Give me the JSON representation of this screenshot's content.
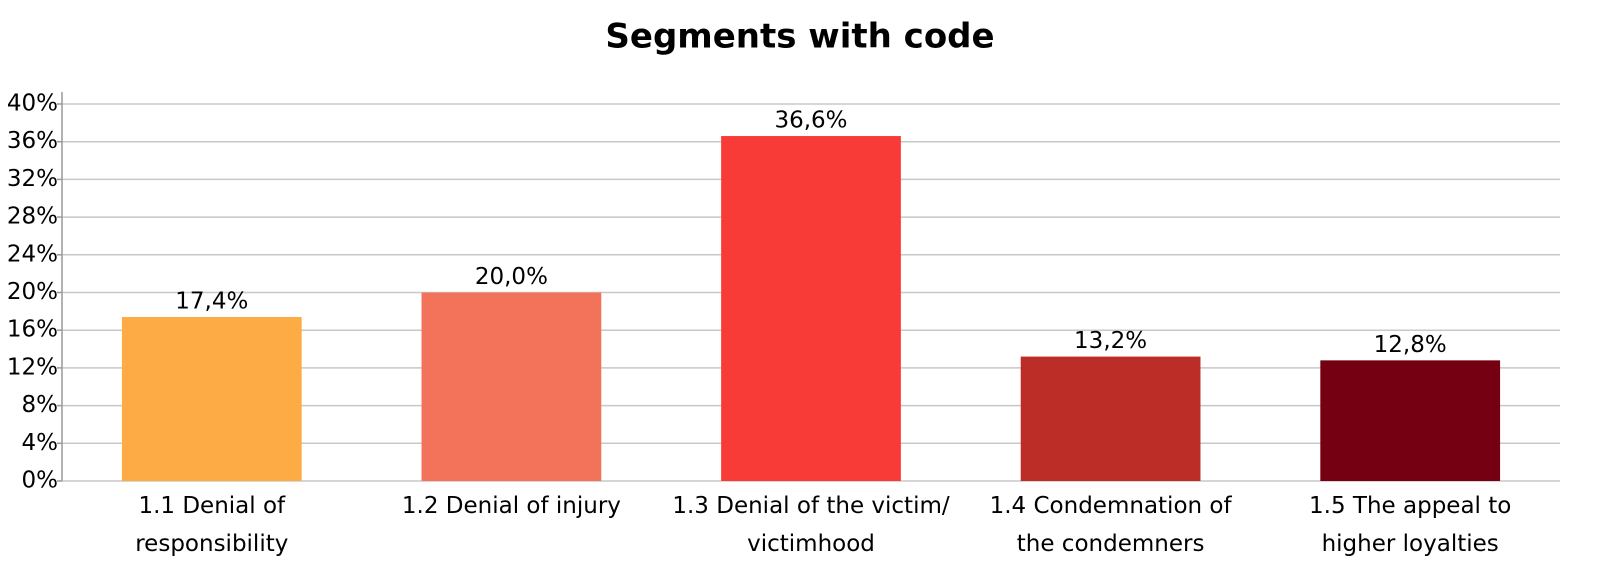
{
  "chart_data": {
    "type": "bar",
    "title": "Segments with code",
    "categories": [
      "1.1 Denial of\nresponsibility",
      "1.2 Denial of injury",
      "1.3 Denial of the victim/\nvictimhood",
      "1.4 Condemnation of\nthe condemners",
      "1.5 The appeal to\nhigher loyalties"
    ],
    "values": [
      17.4,
      20.0,
      36.6,
      13.2,
      12.8
    ],
    "value_labels": [
      "17,4%",
      "20,0%",
      "36,6%",
      "13,2%",
      "12,8%"
    ],
    "colors": [
      "#fdab45",
      "#f3735a",
      "#f93b37",
      "#bd2d28",
      "#750011"
    ],
    "ylim": [
      0,
      40
    ],
    "yticks": [
      {
        "value": 0,
        "label": "0%"
      },
      {
        "value": 4,
        "label": "4%"
      },
      {
        "value": 8,
        "label": "8%"
      },
      {
        "value": 12,
        "label": "12%"
      },
      {
        "value": 16,
        "label": "16%"
      },
      {
        "value": 20,
        "label": "20%"
      },
      {
        "value": 24,
        "label": "24%"
      },
      {
        "value": 28,
        "label": "28%"
      },
      {
        "value": 32,
        "label": "32%"
      },
      {
        "value": 36,
        "label": "36%"
      },
      {
        "value": 40,
        "label": "40%"
      }
    ],
    "grid": true
  }
}
